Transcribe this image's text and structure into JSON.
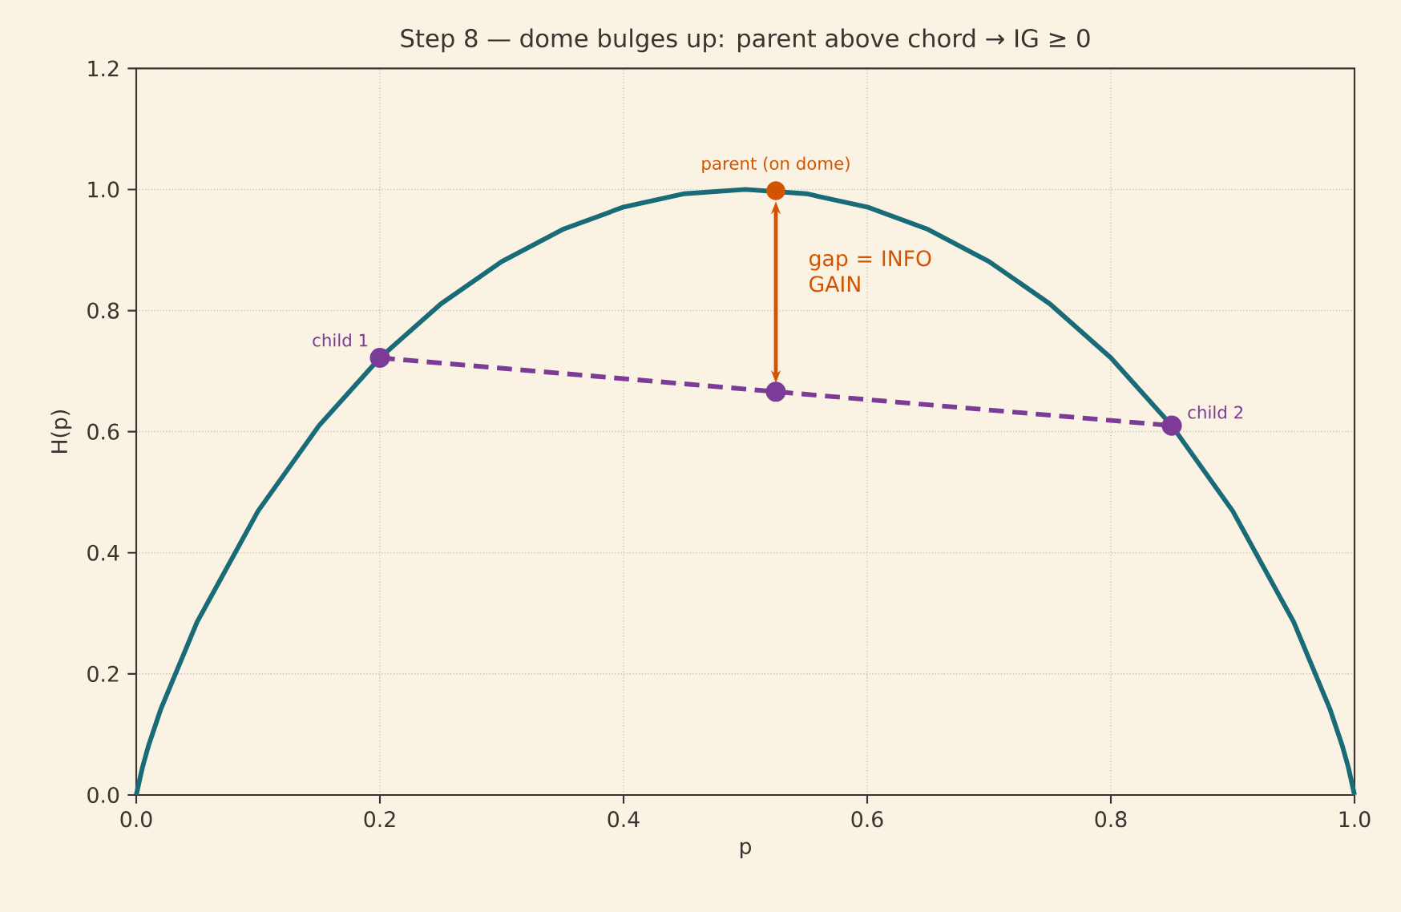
{
  "chart_data": {
    "type": "line",
    "title": "Step 8 — dome bulges up: parent above chord → IG ≥ 0",
    "xlabel": "p",
    "ylabel": "H(p)",
    "xlim": [
      0.0,
      1.0
    ],
    "ylim": [
      0.0,
      1.2
    ],
    "xticks": [
      {
        "value": 0,
        "label": "0.0"
      },
      0.2,
      0.4,
      0.6,
      0.8,
      {
        "value": 1,
        "label": "1.0"
      }
    ],
    "yticks": [
      {
        "value": 0,
        "label": "0.0"
      },
      0.2,
      0.4,
      0.6,
      0.8,
      {
        "value": 1,
        "label": "1.0"
      },
      1.2
    ],
    "grid": true,
    "series": [
      {
        "color": "#1a6b78",
        "line_style": "solid",
        "marker": "none",
        "x": [
          0,
          0.005,
          0.01,
          0.02,
          0.05,
          0.1,
          0.15,
          0.2,
          0.25,
          0.3,
          0.35,
          0.4,
          0.45,
          0.5,
          0.55,
          0.6,
          0.65,
          0.7,
          0.75,
          0.8,
          0.85,
          0.9,
          0.95,
          0.98,
          0.99,
          0.995,
          1
        ],
        "values": [
          0,
          0.045,
          0.081,
          0.141,
          0.286,
          0.469,
          0.61,
          0.722,
          0.811,
          0.881,
          0.934,
          0.971,
          0.993,
          1.0,
          0.993,
          0.971,
          0.934,
          0.881,
          0.811,
          0.722,
          0.61,
          0.469,
          0.286,
          0.141,
          0.081,
          0.045,
          0
        ]
      },
      {
        "color": "#7b3b96",
        "line_style": "dashed",
        "marker": "circle",
        "x": [
          0.2,
          0.525,
          0.85
        ],
        "values": [
          0.722,
          0.666,
          0.61
        ]
      },
      {
        "type": "scatter",
        "color": "#d35400",
        "marker": "circle",
        "x": [
          0.525
        ],
        "values": [
          0.998
        ]
      }
    ],
    "annotations": [
      {
        "text": "parent (on dome)",
        "x": 0.525,
        "y": 0.998
      },
      "gap = INFO GAIN",
      {
        "text": "child 1",
        "x": 0.2,
        "y": 0.722
      },
      {
        "text": "child 2",
        "x": 0.85,
        "y": 0.61
      }
    ]
  }
}
